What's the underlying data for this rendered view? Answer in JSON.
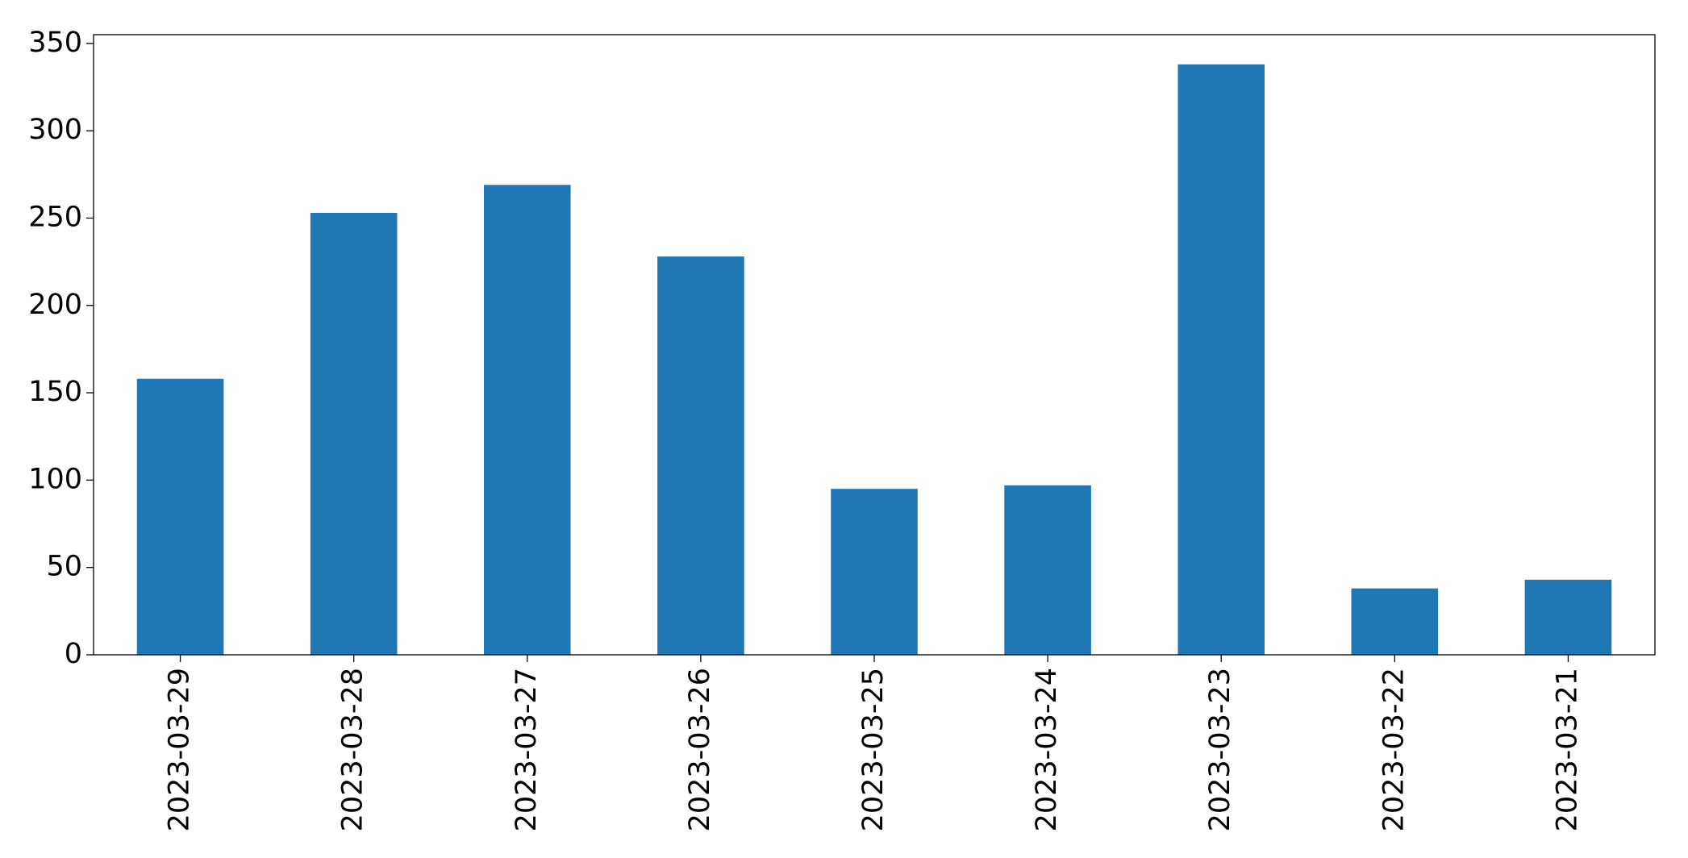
{
  "chart_data": {
    "type": "bar",
    "categories": [
      "2023-03-29",
      "2023-03-28",
      "2023-03-27",
      "2023-03-26",
      "2023-03-25",
      "2023-03-24",
      "2023-03-23",
      "2023-03-22",
      "2023-03-21"
    ],
    "values": [
      158,
      253,
      269,
      228,
      95,
      97,
      338,
      38,
      43
    ],
    "color": "#1f77b4",
    "ylim": [
      0,
      355
    ],
    "yticks": [
      0,
      50,
      100,
      150,
      200,
      250,
      300,
      350
    ],
    "grid": false
  }
}
